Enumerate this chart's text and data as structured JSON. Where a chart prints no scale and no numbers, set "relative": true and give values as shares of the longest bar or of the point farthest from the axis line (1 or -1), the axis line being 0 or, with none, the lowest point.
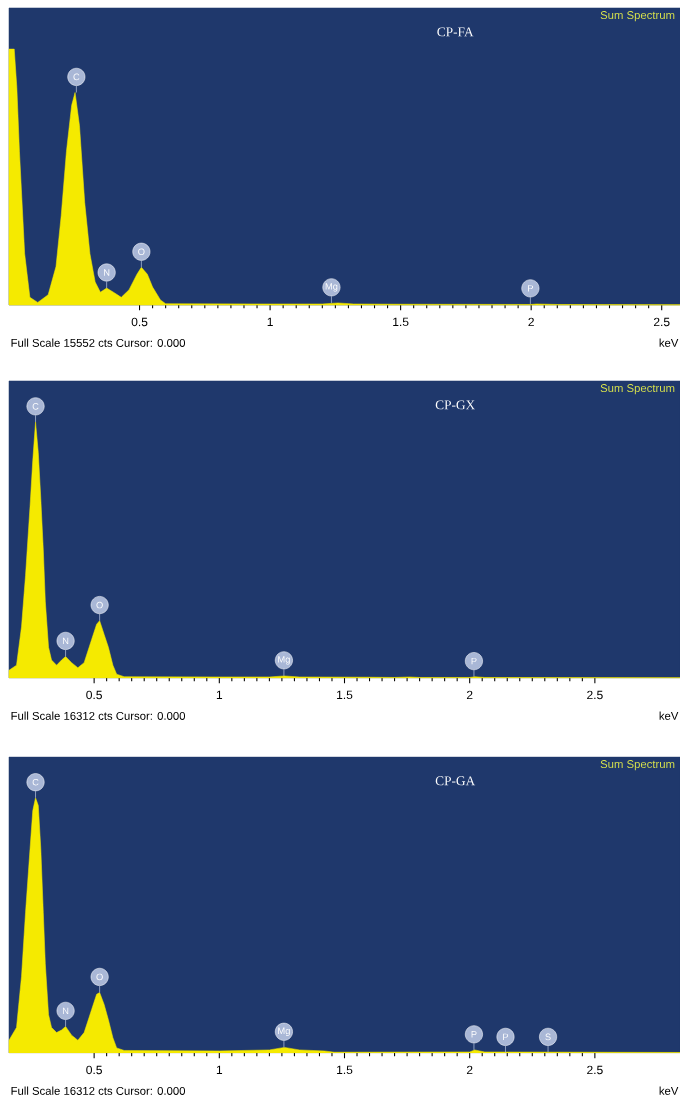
{
  "chart_data": [
    {
      "type": "area",
      "relative": true,
      "title": "Sum Spectrum",
      "subtitle": "CP-FA",
      "xlabel": "keV",
      "color": "#f5ea00",
      "xlim": [
        0,
        2.57
      ],
      "xticks": [
        0.5,
        1,
        1.5,
        2,
        2.5
      ],
      "x": [
        0.0,
        0.02,
        0.03,
        0.04,
        0.06,
        0.08,
        0.11,
        0.15,
        0.18,
        0.2,
        0.22,
        0.24,
        0.253,
        0.27,
        0.29,
        0.31,
        0.33,
        0.35,
        0.374,
        0.4,
        0.43,
        0.46,
        0.49,
        0.507,
        0.53,
        0.55,
        0.58,
        0.6,
        1.0,
        1.2,
        1.26,
        1.32,
        1.5,
        2.0,
        2.02,
        2.1,
        2.57
      ],
      "values": [
        1,
        1,
        0.85,
        0.6,
        0.2,
        0.03,
        0.01,
        0.04,
        0.15,
        0.35,
        0.6,
        0.78,
        0.83,
        0.7,
        0.4,
        0.2,
        0.09,
        0.05,
        0.066,
        0.05,
        0.03,
        0.06,
        0.12,
        0.147,
        0.12,
        0.07,
        0.02,
        0.005,
        0.004,
        0.004,
        0.008,
        0.004,
        0.003,
        0.002,
        0.004,
        0.002,
        0.001
      ],
      "annotations": [
        {
          "text": "C",
          "x": 0.258,
          "y": 0.83
        },
        {
          "text": "N",
          "x": 0.374,
          "y": 0.066
        },
        {
          "text": "O",
          "x": 0.507,
          "y": 0.147
        },
        {
          "text": "Mg",
          "x": 1.235,
          "y": 0.008
        },
        {
          "text": "P",
          "x": 1.997,
          "y": 0.004
        },
        "Full Scale 15552 cts Cursor: 0.000"
      ]
    },
    {
      "type": "area",
      "relative": true,
      "title": "Sum Spectrum",
      "subtitle": "CP-GX",
      "xlabel": "keV",
      "color": "#f5ea00",
      "xlim": [
        0.16,
        2.84
      ],
      "xticks": [
        0.5,
        1,
        1.5,
        2,
        2.5
      ],
      "x": [
        0.16,
        0.19,
        0.21,
        0.226,
        0.244,
        0.255,
        0.266,
        0.277,
        0.287,
        0.297,
        0.305,
        0.318,
        0.33,
        0.35,
        0.37,
        0.386,
        0.41,
        0.435,
        0.46,
        0.49,
        0.51,
        0.522,
        0.54,
        0.557,
        0.575,
        0.59,
        0.62,
        1.0,
        1.2,
        1.26,
        1.32,
        1.6,
        1.7,
        1.76,
        1.8,
        2.0,
        2.02,
        2.06,
        2.84
      ],
      "values": [
        0.03,
        0.05,
        0.2,
        0.4,
        0.67,
        0.85,
        1,
        0.88,
        0.7,
        0.5,
        0.3,
        0.12,
        0.07,
        0.05,
        0.07,
        0.084,
        0.06,
        0.04,
        0.06,
        0.15,
        0.21,
        0.224,
        0.17,
        0.12,
        0.05,
        0.015,
        0.005,
        0.004,
        0.004,
        0.008,
        0.004,
        0.003,
        0.002,
        0.004,
        0.002,
        0.002,
        0.005,
        0.002,
        0.001
      ],
      "annotations": [
        {
          "text": "C",
          "x": 0.266,
          "y": 1
        },
        {
          "text": "N",
          "x": 0.386,
          "y": 0.084
        },
        {
          "text": "O",
          "x": 0.522,
          "y": 0.224
        },
        {
          "text": "Mg",
          "x": 1.258,
          "y": 0.008
        },
        {
          "text": "P",
          "x": 2.017,
          "y": 0.005
        },
        "Full Scale 16312 cts Cursor: 0.000"
      ]
    },
    {
      "type": "area",
      "relative": true,
      "title": "Sum Spectrum",
      "subtitle": "CP-GA",
      "xlabel": "keV",
      "color": "#f5ea00",
      "xlim": [
        0.16,
        2.84
      ],
      "xticks": [
        0.5,
        1,
        1.5,
        2,
        2.5
      ],
      "x": [
        0.16,
        0.19,
        0.21,
        0.226,
        0.244,
        0.255,
        0.266,
        0.277,
        0.287,
        0.297,
        0.305,
        0.318,
        0.33,
        0.35,
        0.37,
        0.386,
        0.41,
        0.435,
        0.46,
        0.49,
        0.51,
        0.522,
        0.54,
        0.557,
        0.575,
        0.59,
        0.62,
        1.0,
        1.2,
        1.26,
        1.32,
        1.42,
        1.46,
        2.0,
        2.02,
        2.06,
        2.84
      ],
      "values": [
        0.05,
        0.1,
        0.3,
        0.55,
        0.8,
        0.95,
        1,
        0.97,
        0.8,
        0.55,
        0.35,
        0.15,
        0.1,
        0.08,
        0.09,
        0.104,
        0.07,
        0.05,
        0.08,
        0.17,
        0.23,
        0.237,
        0.19,
        0.13,
        0.06,
        0.02,
        0.01,
        0.008,
        0.012,
        0.022,
        0.012,
        0.008,
        0.003,
        0.004,
        0.012,
        0.004,
        0.002
      ],
      "annotations": [
        {
          "text": "C",
          "x": 0.266,
          "y": 1
        },
        {
          "text": "N",
          "x": 0.386,
          "y": 0.104
        },
        {
          "text": "O",
          "x": 0.522,
          "y": 0.237
        },
        {
          "text": "Mg",
          "x": 1.258,
          "y": 0.022
        },
        {
          "text": "P",
          "x": 2.017,
          "y": 0.012
        },
        {
          "text": "P",
          "x": 2.143,
          "y": 0.002
        },
        {
          "text": "S",
          "x": 2.313,
          "y": 0.002
        },
        "Full Scale 16312 cts Cursor: 0.000"
      ]
    }
  ]
}
